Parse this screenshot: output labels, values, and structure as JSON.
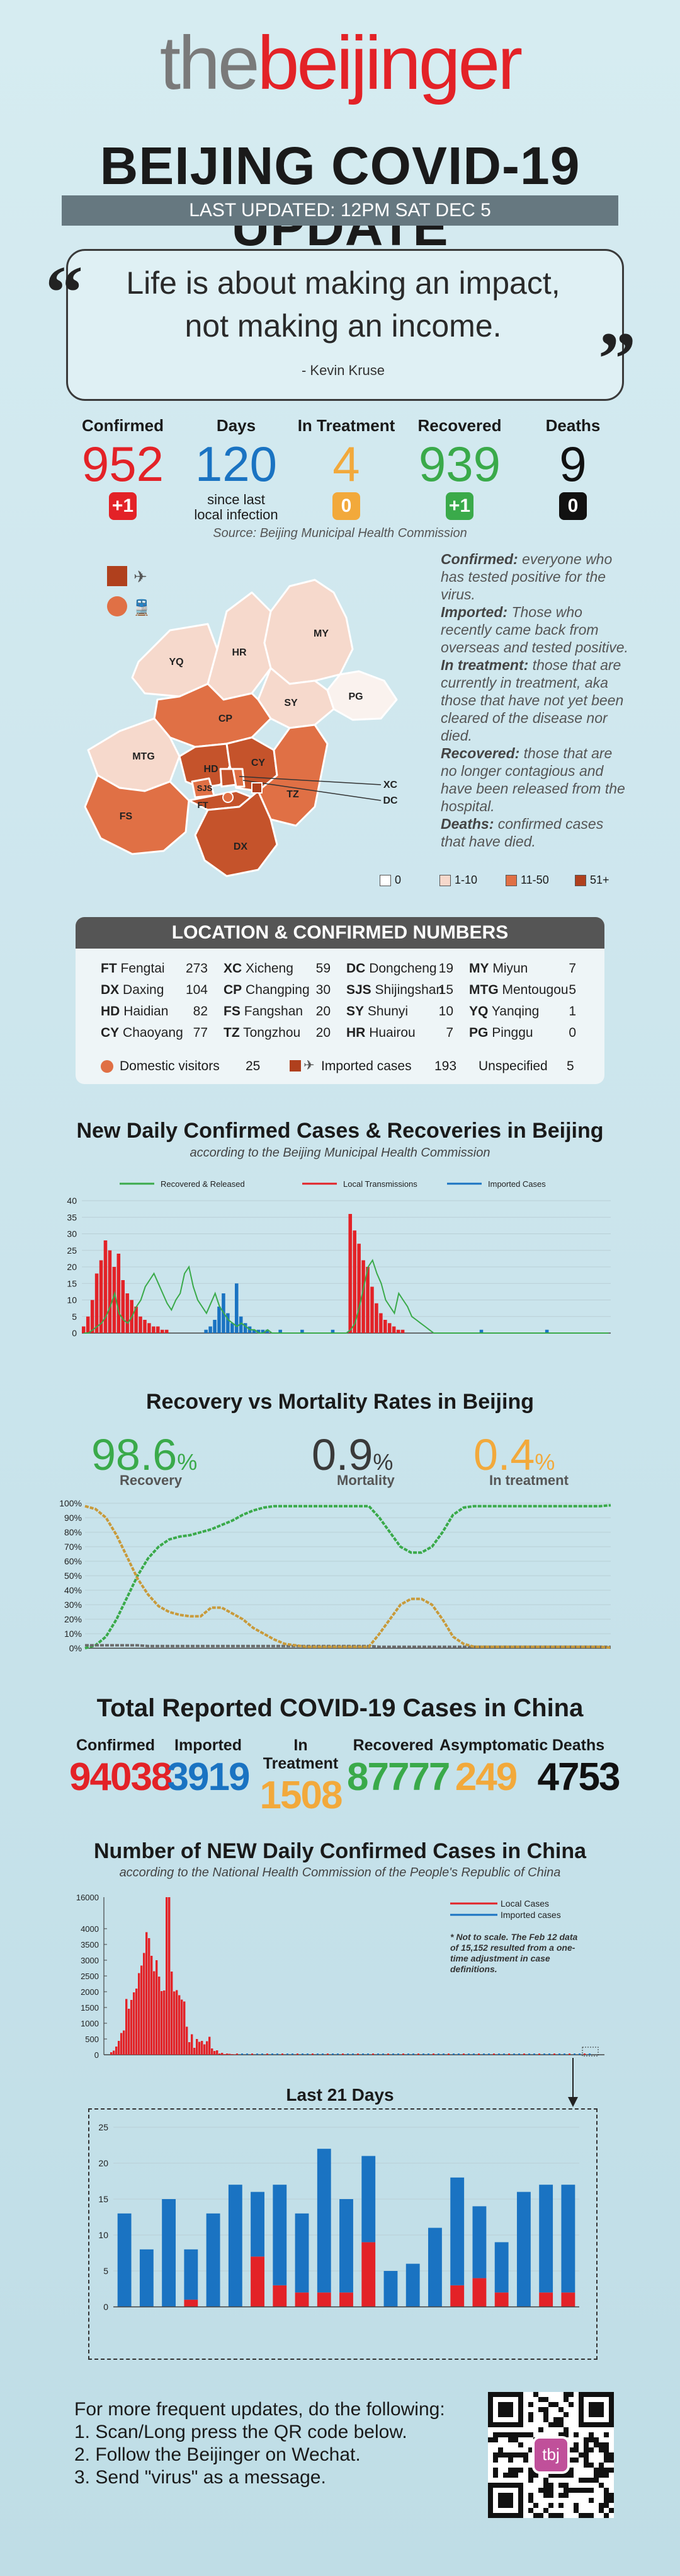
{
  "logo": {
    "part1": "the",
    "part2": "beijinger"
  },
  "title": "BEIJING COVID-19 UPDATE",
  "last_updated": "LAST UPDATED:  12PM SAT DEC 5",
  "quote": {
    "line1": "Life is about making an impact,",
    "line2": "not making an income.",
    "author": "- Kevin Kruse"
  },
  "stats": [
    {
      "label": "Confirmed",
      "value": "952",
      "delta": "+1",
      "color": "#e32227"
    },
    {
      "label": "Days",
      "value": "120",
      "note": "since last local infection",
      "color": "#1a73c2"
    },
    {
      "label": "In Treatment",
      "value": "4",
      "delta": "0",
      "color": "#f2a93b"
    },
    {
      "label": "Recovered",
      "value": "939",
      "delta": "+1",
      "color": "#3aaa4a"
    },
    {
      "label": "Deaths",
      "value": "9",
      "delta": "0",
      "color": "#111111"
    }
  ],
  "source": "Source: Beijing Municipal Health Commission",
  "definitions": [
    {
      "term": "Confirmed:",
      "text": " everyone who has tested positive for the virus."
    },
    {
      "term": "Imported:",
      "text": " Those who recently came back from overseas and tested positive."
    },
    {
      "term": "In treatment:",
      "text": " those that are currently in treatment, aka those that have not yet been cleared of the disease nor died."
    },
    {
      "term": "Recovered:",
      "text": " those that are no longer contagious and have been released from the hospital."
    },
    {
      "term": "Deaths:",
      "text": " confirmed cases that have died."
    }
  ],
  "map": {
    "districts": [
      {
        "code": "YQ",
        "label": "YQ",
        "color": "#f6d9cc"
      },
      {
        "code": "HR",
        "label": "HR",
        "color": "#f6d9cc"
      },
      {
        "code": "MY",
        "label": "MY",
        "color": "#f6d9cc"
      },
      {
        "code": "PG",
        "label": "PG",
        "color": "#faf2ee"
      },
      {
        "code": "CP",
        "label": "CP",
        "color": "#e07045"
      },
      {
        "code": "SY",
        "label": "SY",
        "color": "#f6d9cc"
      },
      {
        "code": "MTG",
        "label": "MTG",
        "color": "#f6d9cc"
      },
      {
        "code": "HD",
        "label": "HD",
        "color": "#c5532b"
      },
      {
        "code": "CY",
        "label": "CY",
        "color": "#c5532b"
      },
      {
        "code": "XC",
        "label": "XC",
        "color": "#c5532b"
      },
      {
        "code": "DC",
        "label": "DC",
        "color": "#e07045"
      },
      {
        "code": "SJS",
        "label": "SJS",
        "color": "#e07045"
      },
      {
        "code": "FT",
        "label": "FT",
        "color": "#c5532b"
      },
      {
        "code": "FS",
        "label": "FS",
        "color": "#e07045"
      },
      {
        "code": "TZ",
        "label": "TZ",
        "color": "#e07045"
      },
      {
        "code": "DX",
        "label": "DX",
        "color": "#c5532b"
      }
    ],
    "legend": [
      {
        "label": "0",
        "color": "#ffffff"
      },
      {
        "label": "1-10",
        "color": "#f6d9cc"
      },
      {
        "label": "11-50",
        "color": "#e07045"
      },
      {
        "label": "51+",
        "color": "#b0401d"
      }
    ],
    "icon_plane": "plane-icon",
    "icon_train": "train-icon"
  },
  "locations": {
    "header": "LOCATION & CONFIRMED NUMBERS",
    "columns": [
      [
        {
          "code": "FT",
          "name": "Fengtai",
          "n": "273"
        },
        {
          "code": "DX",
          "name": "Daxing",
          "n": "104"
        },
        {
          "code": "HD",
          "name": "Haidian",
          "n": "82"
        },
        {
          "code": "CY",
          "name": "Chaoyang",
          "n": "77"
        }
      ],
      [
        {
          "code": "XC",
          "name": "Xicheng",
          "n": "59"
        },
        {
          "code": "CP",
          "name": "Changping",
          "n": "30"
        },
        {
          "code": "FS",
          "name": "Fangshan",
          "n": "20"
        },
        {
          "code": "TZ",
          "name": "Tongzhou",
          "n": "20"
        }
      ],
      [
        {
          "code": "DC",
          "name": "Dongcheng",
          "n": "19"
        },
        {
          "code": "SJS",
          "name": "Shijingshan",
          "n": "15"
        },
        {
          "code": "SY",
          "name": "Shunyi",
          "n": "10"
        },
        {
          "code": "HR",
          "name": "Huairou",
          "n": "7"
        }
      ],
      [
        {
          "code": "MY",
          "name": "Miyun",
          "n": "7"
        },
        {
          "code": "MTG",
          "name": "Mentougou",
          "n": "5"
        },
        {
          "code": "YQ",
          "name": "Yanqing",
          "n": "1"
        },
        {
          "code": "PG",
          "name": "Pinggu",
          "n": "0"
        }
      ]
    ],
    "footer": {
      "domestic_label": "Domestic visitors",
      "domestic_n": "25",
      "imported_label": "Imported cases",
      "imported_n": "193",
      "unspecified_label": "Unspecified",
      "unspecified_n": "5"
    }
  },
  "section1": {
    "title": "New Daily Confirmed Cases & Recoveries in Beijing",
    "subtitle": "according to the Beijing Municipal Health Commission"
  },
  "section2": {
    "title": "Recovery vs Mortality Rates in Beijing",
    "rates": [
      {
        "value": "98.6",
        "unit": "%",
        "label": "Recovery",
        "color": "#3aaa4a"
      },
      {
        "value": "0.9",
        "unit": "%",
        "label": "Mortality",
        "color": "#3a3a3a"
      },
      {
        "value": "0.4",
        "unit": "%",
        "label": "In treatment",
        "color": "#f2a93b"
      }
    ]
  },
  "section3": {
    "title": "Total Reported COVID-19 Cases in China",
    "totals": [
      {
        "label": "Confirmed",
        "value": "94038",
        "color": "#e32227"
      },
      {
        "label": "Imported",
        "value": "3919",
        "color": "#1a73c2"
      },
      {
        "label": "In Treatment",
        "value": "1508",
        "color": "#f2a93b"
      },
      {
        "label": "Recovered",
        "value": "87777",
        "color": "#3aaa4a"
      },
      {
        "label": "Asymptomatic",
        "value": "249",
        "color": "#f2a93b"
      },
      {
        "label": "Deaths",
        "value": "4753",
        "color": "#111111"
      }
    ]
  },
  "section4": {
    "title": "Number of NEW Daily Confirmed Cases in China",
    "subtitle": "according to the National Health Commission of the People's Republic of China",
    "note": "* Not to scale. The Feb 12 data of 15,152 resulted from a one-time adjustment in case definitions."
  },
  "section5": {
    "title": "Last 21 Days"
  },
  "footer": {
    "line0": "For more frequent updates, do the following:",
    "line1": "1. Scan/Long press the QR code below.",
    "line2": "2. Follow the Beijinger on Wechat.",
    "line3": "3. Send \"virus\" as a message.",
    "qr_badge": "tbj"
  },
  "chart_data": [
    {
      "type": "bar",
      "title": "New Daily Confirmed Cases & Recoveries in Beijing",
      "ylim": [
        0,
        40
      ],
      "yticks": [
        0,
        5,
        10,
        15,
        20,
        25,
        30,
        35,
        40
      ],
      "series": [
        {
          "name": "Recovered & Released",
          "color": "#3aaa4a",
          "values": [
            0,
            0,
            1,
            2,
            3,
            5,
            8,
            12,
            6,
            4,
            3,
            5,
            8,
            10,
            14,
            16,
            18,
            15,
            12,
            9,
            7,
            10,
            12,
            18,
            20,
            14,
            10,
            8,
            6,
            9,
            12,
            8,
            6,
            4,
            3,
            2,
            3,
            2,
            1,
            1,
            0,
            0,
            1,
            0,
            0,
            0,
            0,
            0,
            0,
            0,
            0,
            0,
            0,
            0,
            0,
            0,
            0,
            0,
            0,
            0,
            0,
            1,
            3,
            8,
            14,
            20,
            22,
            18,
            15,
            10,
            8,
            6,
            12,
            10,
            8,
            5,
            4,
            3,
            2,
            1,
            0,
            0,
            0,
            0,
            0,
            0,
            0,
            0,
            0,
            0,
            0,
            0,
            0,
            0,
            0,
            0,
            0,
            0,
            0,
            0,
            0,
            0,
            0,
            0,
            0,
            0,
            0,
            0,
            0,
            0,
            0,
            0,
            0,
            0,
            0,
            0,
            0,
            0,
            0,
            0,
            0
          ]
        },
        {
          "name": "Local Transmissions",
          "color": "#e32227",
          "values": [
            2,
            5,
            10,
            18,
            22,
            28,
            25,
            20,
            24,
            16,
            12,
            10,
            8,
            5,
            4,
            3,
            2,
            2,
            1,
            1,
            0,
            0,
            0,
            0,
            0,
            0,
            0,
            0,
            0,
            0,
            0,
            0,
            0,
            0,
            0,
            0,
            0,
            0,
            0,
            0,
            0,
            0,
            0,
            0,
            0,
            0,
            0,
            0,
            0,
            0,
            0,
            0,
            0,
            0,
            0,
            0,
            0,
            0,
            0,
            0,
            0,
            36,
            31,
            27,
            22,
            20,
            14,
            9,
            6,
            4,
            3,
            2,
            1,
            1,
            0,
            0,
            0,
            0,
            0,
            0,
            0,
            0,
            0,
            0,
            0,
            0,
            0,
            0,
            0,
            0,
            0,
            0,
            0,
            0,
            0,
            0,
            0,
            0,
            0,
            0,
            0,
            0,
            0,
            0,
            0,
            0,
            0,
            0,
            0,
            0,
            0,
            0,
            0,
            0,
            0,
            0,
            0,
            0,
            0,
            0,
            0
          ]
        },
        {
          "name": "Imported Cases",
          "color": "#1a73c2",
          "values": [
            0,
            0,
            0,
            0,
            0,
            0,
            0,
            0,
            0,
            0,
            0,
            0,
            0,
            0,
            0,
            0,
            0,
            0,
            0,
            0,
            0,
            0,
            0,
            0,
            0,
            0,
            0,
            0,
            1,
            2,
            4,
            8,
            12,
            6,
            3,
            15,
            5,
            3,
            2,
            1,
            1,
            1,
            1,
            0,
            0,
            1,
            0,
            0,
            0,
            0,
            1,
            0,
            0,
            0,
            0,
            0,
            0,
            1,
            0,
            0,
            0,
            0,
            0,
            0,
            0,
            0,
            0,
            0,
            0,
            0,
            0,
            0,
            0,
            0,
            0,
            0,
            0,
            0,
            0,
            0,
            0,
            0,
            0,
            0,
            0,
            0,
            0,
            0,
            0,
            0,
            0,
            1,
            0,
            0,
            0,
            0,
            0,
            0,
            0,
            0,
            0,
            0,
            0,
            0,
            0,
            0,
            1,
            0,
            0,
            0,
            0,
            0,
            0,
            0,
            0,
            0,
            0,
            0,
            0,
            0,
            0
          ]
        }
      ]
    },
    {
      "type": "line",
      "title": "Recovery vs Mortality Rates in Beijing",
      "ylim": [
        0,
        100
      ],
      "yticks": [
        "0%",
        "10%",
        "20%",
        "30%",
        "40%",
        "50%",
        "60%",
        "70%",
        "80%",
        "90%",
        "100%"
      ],
      "series": [
        {
          "name": "Recovery",
          "color": "#3aaa4a",
          "values": [
            0,
            2,
            8,
            20,
            35,
            50,
            62,
            70,
            75,
            77,
            78,
            80,
            82,
            85,
            88,
            92,
            95,
            97,
            98,
            98,
            98,
            98,
            98,
            98,
            98,
            98,
            98,
            98,
            90,
            80,
            70,
            66,
            66,
            70,
            80,
            92,
            97,
            98,
            98,
            98,
            98,
            98,
            98,
            98,
            98,
            98,
            98,
            98,
            98,
            98,
            98.6
          ]
        },
        {
          "name": "Mortality",
          "color": "#6b6b6b",
          "values": [
            2,
            2,
            2,
            2,
            2,
            2,
            1.5,
            1.5,
            1.5,
            1.5,
            1.5,
            1.5,
            1.5,
            1.5,
            1.5,
            1.5,
            1.5,
            1.5,
            1.5,
            1.5,
            1.5,
            1.5,
            1.5,
            1.5,
            1.5,
            1.5,
            1.5,
            1.5,
            1,
            1,
            1,
            1,
            1,
            1,
            1,
            1,
            1,
            1,
            1,
            1,
            1,
            1,
            1,
            1,
            1,
            1,
            1,
            1,
            1,
            1,
            0.9
          ]
        },
        {
          "name": "In treatment",
          "color": "#c89a3a",
          "values": [
            98,
            96,
            90,
            78,
            63,
            48,
            37,
            29,
            25,
            23,
            22,
            22,
            28,
            28,
            24,
            20,
            14,
            10,
            6,
            3,
            2,
            1,
            1,
            1,
            1,
            1,
            1,
            1,
            10,
            20,
            30,
            34,
            34,
            30,
            20,
            8,
            3,
            1,
            1,
            1,
            1,
            1,
            1,
            1,
            1,
            1,
            1,
            1,
            1,
            1,
            0.4
          ]
        }
      ]
    },
    {
      "type": "bar",
      "title": "Number of NEW Daily Confirmed Cases in China",
      "ylim": [
        0,
        16000
      ],
      "yticks": [
        0,
        500,
        1000,
        1500,
        2000,
        2500,
        3000,
        3500,
        4000,
        16000
      ],
      "series": [
        {
          "name": "Local Cases",
          "color": "#e32227",
          "values": [
            80,
            130,
            260,
            440,
            690,
            770,
            1770,
            1460,
            1740,
            1980,
            2100,
            2590,
            2830,
            3230,
            3890,
            3700,
            3140,
            2650,
            3000,
            2480,
            2020,
            2040,
            15152,
            5090,
            2640,
            2010,
            2050,
            1890,
            1750,
            1690,
            890,
            400,
            650,
            220,
            500,
            410,
            440,
            330,
            430,
            570,
            200,
            120,
            140,
            40,
            60,
            20,
            40,
            30,
            20,
            10
          ]
        },
        {
          "name": "Imported cases",
          "color": "#1a73c2",
          "values": []
        }
      ]
    },
    {
      "type": "bar",
      "title": "Last 21 Days",
      "ylim": [
        0,
        25
      ],
      "yticks": [
        0,
        5,
        10,
        15,
        20,
        25
      ],
      "series": [
        {
          "name": "Local Cases",
          "color": "#e32227",
          "values": [
            0,
            0,
            0,
            1,
            0,
            0,
            7,
            3,
            2,
            2,
            2,
            9,
            0,
            0,
            0,
            3,
            4,
            2,
            0,
            2,
            2
          ]
        },
        {
          "name": "Imported cases",
          "color": "#1a73c2",
          "values": [
            13,
            8,
            15,
            7,
            13,
            17,
            9,
            14,
            11,
            20,
            13,
            12,
            5,
            6,
            11,
            15,
            10,
            7,
            16,
            15,
            15
          ]
        }
      ]
    }
  ]
}
